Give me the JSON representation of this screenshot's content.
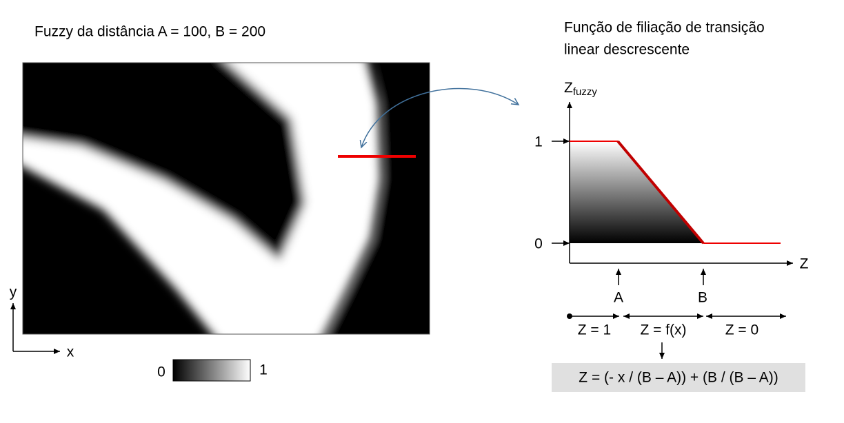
{
  "left": {
    "title": "Fuzzy da distância A = 100, B = 200",
    "axis_y": "y",
    "axis_x": "x",
    "colorbar": {
      "min_label": "0",
      "max_label": "1"
    }
  },
  "right": {
    "title_lines": [
      "Função de filiação de transição",
      "linear descrescente"
    ],
    "y_axis_label": "Z",
    "y_axis_subscript": "fuzzy",
    "y_ticks": [
      "1",
      "0"
    ],
    "x_axis_label": "Z",
    "markers": [
      "A",
      "B"
    ],
    "zones": [
      "Z = 1",
      "Z = f(x)",
      "Z = 0"
    ],
    "formula": "Z = (- x / (B – A)) + (B / (B – A))"
  }
}
